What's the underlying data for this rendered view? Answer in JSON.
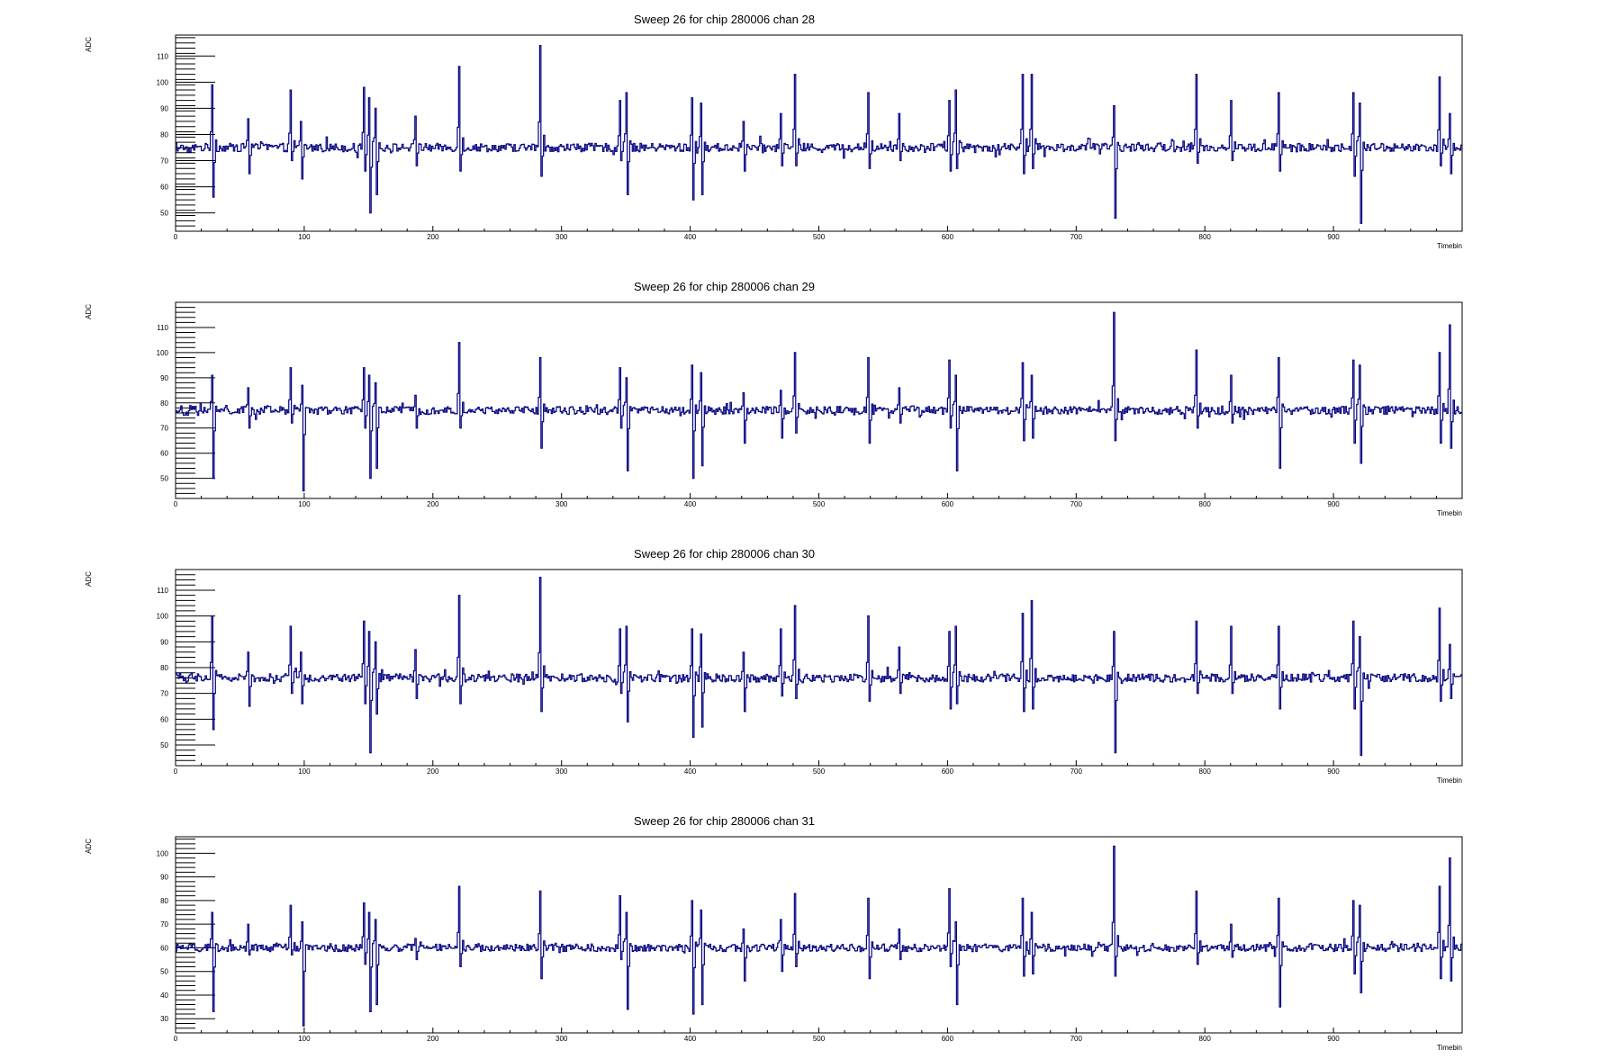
{
  "chart_data": [
    {
      "type": "line",
      "title": "Sweep 26 for chip 280006 chan 28",
      "xlabel": "Timebin",
      "ylabel": "ADC",
      "xlim": [
        0,
        1000
      ],
      "ylim": [
        43,
        118
      ],
      "xticks": [
        0,
        100,
        200,
        300,
        400,
        500,
        600,
        700,
        800,
        900
      ],
      "yticks": [
        50,
        60,
        70,
        80,
        90,
        100,
        110
      ],
      "baseline": 75,
      "series": [
        {
          "color": "#000080",
          "spikes": [
            {
              "x": 28,
              "high": 99,
              "low": 56
            },
            {
              "x": 56,
              "high": 86,
              "low": 65
            },
            {
              "x": 89,
              "high": 97,
              "low": 70
            },
            {
              "x": 97,
              "high": 85,
              "low": 63
            },
            {
              "x": 146,
              "high": 98,
              "low": 66
            },
            {
              "x": 150,
              "high": 94,
              "low": 50
            },
            {
              "x": 155,
              "high": 90,
              "low": 57
            },
            {
              "x": 186,
              "high": 87,
              "low": 68
            },
            {
              "x": 220,
              "high": 106,
              "low": 66
            },
            {
              "x": 283,
              "high": 114,
              "low": 64
            },
            {
              "x": 345,
              "high": 93,
              "low": 70
            },
            {
              "x": 350,
              "high": 96,
              "low": 57
            },
            {
              "x": 401,
              "high": 94,
              "low": 55
            },
            {
              "x": 408,
              "high": 92,
              "low": 57
            },
            {
              "x": 441,
              "high": 85,
              "low": 66
            },
            {
              "x": 470,
              "high": 88,
              "low": 68
            },
            {
              "x": 481,
              "high": 103,
              "low": 68
            },
            {
              "x": 538,
              "high": 96,
              "low": 67
            },
            {
              "x": 562,
              "high": 88,
              "low": 70
            },
            {
              "x": 601,
              "high": 93,
              "low": 66
            },
            {
              "x": 606,
              "high": 97,
              "low": 67
            },
            {
              "x": 658,
              "high": 103,
              "low": 65
            },
            {
              "x": 665,
              "high": 103,
              "low": 67
            },
            {
              "x": 729,
              "high": 91,
              "low": 48
            },
            {
              "x": 793,
              "high": 103,
              "low": 69
            },
            {
              "x": 820,
              "high": 93,
              "low": 70
            },
            {
              "x": 857,
              "high": 96,
              "low": 66
            },
            {
              "x": 915,
              "high": 96,
              "low": 64
            },
            {
              "x": 920,
              "high": 92,
              "low": 46
            },
            {
              "x": 982,
              "high": 102,
              "low": 68
            },
            {
              "x": 990,
              "high": 88,
              "low": 65
            }
          ]
        }
      ]
    },
    {
      "type": "line",
      "title": "Sweep 26 for chip 280006 chan 29",
      "xlabel": "Timebin",
      "ylabel": "ADC",
      "xlim": [
        0,
        1000
      ],
      "ylim": [
        42,
        120
      ],
      "xticks": [
        0,
        100,
        200,
        300,
        400,
        500,
        600,
        700,
        800,
        900
      ],
      "yticks": [
        50,
        60,
        70,
        80,
        90,
        100,
        110
      ],
      "baseline": 77,
      "series": [
        {
          "color": "#000080",
          "spikes": [
            {
              "x": 28,
              "high": 91,
              "low": 50
            },
            {
              "x": 56,
              "high": 86,
              "low": 70
            },
            {
              "x": 89,
              "high": 94,
              "low": 72
            },
            {
              "x": 98,
              "high": 87,
              "low": 45
            },
            {
              "x": 146,
              "high": 94,
              "low": 70
            },
            {
              "x": 150,
              "high": 91,
              "low": 50
            },
            {
              "x": 155,
              "high": 88,
              "low": 54
            },
            {
              "x": 186,
              "high": 83,
              "low": 70
            },
            {
              "x": 220,
              "high": 104,
              "low": 70
            },
            {
              "x": 283,
              "high": 98,
              "low": 62
            },
            {
              "x": 345,
              "high": 94,
              "low": 70
            },
            {
              "x": 350,
              "high": 90,
              "low": 53
            },
            {
              "x": 401,
              "high": 95,
              "low": 50
            },
            {
              "x": 408,
              "high": 92,
              "low": 55
            },
            {
              "x": 441,
              "high": 84,
              "low": 64
            },
            {
              "x": 470,
              "high": 85,
              "low": 66
            },
            {
              "x": 481,
              "high": 100,
              "low": 68
            },
            {
              "x": 538,
              "high": 98,
              "low": 64
            },
            {
              "x": 562,
              "high": 86,
              "low": 72
            },
            {
              "x": 601,
              "high": 97,
              "low": 70
            },
            {
              "x": 606,
              "high": 91,
              "low": 53
            },
            {
              "x": 658,
              "high": 96,
              "low": 65
            },
            {
              "x": 665,
              "high": 91,
              "low": 66
            },
            {
              "x": 729,
              "high": 116,
              "low": 65
            },
            {
              "x": 793,
              "high": 101,
              "low": 70
            },
            {
              "x": 820,
              "high": 91,
              "low": 72
            },
            {
              "x": 857,
              "high": 98,
              "low": 54
            },
            {
              "x": 915,
              "high": 97,
              "low": 64
            },
            {
              "x": 920,
              "high": 95,
              "low": 56
            },
            {
              "x": 982,
              "high": 100,
              "low": 64
            },
            {
              "x": 990,
              "high": 111,
              "low": 62
            }
          ]
        }
      ]
    },
    {
      "type": "line",
      "title": "Sweep 26 for chip 280006 chan 30",
      "xlabel": "Timebin",
      "ylabel": "ADC",
      "xlim": [
        0,
        1000
      ],
      "ylim": [
        42,
        118
      ],
      "xticks": [
        0,
        100,
        200,
        300,
        400,
        500,
        600,
        700,
        800,
        900
      ],
      "yticks": [
        50,
        60,
        70,
        80,
        90,
        100,
        110
      ],
      "baseline": 76,
      "series": [
        {
          "color": "#000080",
          "spikes": [
            {
              "x": 28,
              "high": 100,
              "low": 56
            },
            {
              "x": 56,
              "high": 86,
              "low": 65
            },
            {
              "x": 89,
              "high": 96,
              "low": 70
            },
            {
              "x": 97,
              "high": 86,
              "low": 66
            },
            {
              "x": 146,
              "high": 98,
              "low": 66
            },
            {
              "x": 150,
              "high": 94,
              "low": 47
            },
            {
              "x": 155,
              "high": 90,
              "low": 62
            },
            {
              "x": 186,
              "high": 87,
              "low": 68
            },
            {
              "x": 220,
              "high": 108,
              "low": 66
            },
            {
              "x": 283,
              "high": 115,
              "low": 63
            },
            {
              "x": 345,
              "high": 95,
              "low": 70
            },
            {
              "x": 350,
              "high": 96,
              "low": 59
            },
            {
              "x": 401,
              "high": 95,
              "low": 53
            },
            {
              "x": 408,
              "high": 93,
              "low": 57
            },
            {
              "x": 441,
              "high": 86,
              "low": 63
            },
            {
              "x": 470,
              "high": 95,
              "low": 69
            },
            {
              "x": 481,
              "high": 104,
              "low": 68
            },
            {
              "x": 538,
              "high": 100,
              "low": 67
            },
            {
              "x": 562,
              "high": 88,
              "low": 70
            },
            {
              "x": 601,
              "high": 94,
              "low": 64
            },
            {
              "x": 606,
              "high": 96,
              "low": 66
            },
            {
              "x": 658,
              "high": 101,
              "low": 63
            },
            {
              "x": 665,
              "high": 106,
              "low": 64
            },
            {
              "x": 729,
              "high": 94,
              "low": 47
            },
            {
              "x": 793,
              "high": 98,
              "low": 70
            },
            {
              "x": 820,
              "high": 96,
              "low": 70
            },
            {
              "x": 857,
              "high": 96,
              "low": 64
            },
            {
              "x": 915,
              "high": 98,
              "low": 64
            },
            {
              "x": 920,
              "high": 92,
              "low": 46
            },
            {
              "x": 982,
              "high": 103,
              "low": 67
            },
            {
              "x": 990,
              "high": 89,
              "low": 68
            }
          ]
        }
      ]
    },
    {
      "type": "line",
      "title": "Sweep 26 for chip 280006 chan 31",
      "xlabel": "Timebin",
      "ylabel": "ADC",
      "xlim": [
        0,
        1000
      ],
      "ylim": [
        24,
        107
      ],
      "xticks": [
        0,
        100,
        200,
        300,
        400,
        500,
        600,
        700,
        800,
        900
      ],
      "yticks": [
        30,
        40,
        50,
        60,
        70,
        80,
        90,
        100
      ],
      "baseline": 60,
      "series": [
        {
          "color": "#000080",
          "spikes": [
            {
              "x": 28,
              "high": 75,
              "low": 33
            },
            {
              "x": 56,
              "high": 70,
              "low": 57
            },
            {
              "x": 89,
              "high": 78,
              "low": 57
            },
            {
              "x": 98,
              "high": 71,
              "low": 27
            },
            {
              "x": 146,
              "high": 79,
              "low": 53
            },
            {
              "x": 150,
              "high": 75,
              "low": 33
            },
            {
              "x": 155,
              "high": 72,
              "low": 36
            },
            {
              "x": 186,
              "high": 64,
              "low": 55
            },
            {
              "x": 220,
              "high": 86,
              "low": 52
            },
            {
              "x": 283,
              "high": 84,
              "low": 47
            },
            {
              "x": 345,
              "high": 82,
              "low": 55
            },
            {
              "x": 350,
              "high": 75,
              "low": 34
            },
            {
              "x": 401,
              "high": 80,
              "low": 32
            },
            {
              "x": 408,
              "high": 76,
              "low": 36
            },
            {
              "x": 441,
              "high": 68,
              "low": 46
            },
            {
              "x": 470,
              "high": 72,
              "low": 50
            },
            {
              "x": 481,
              "high": 83,
              "low": 52
            },
            {
              "x": 538,
              "high": 81,
              "low": 47
            },
            {
              "x": 562,
              "high": 68,
              "low": 55
            },
            {
              "x": 601,
              "high": 85,
              "low": 52
            },
            {
              "x": 606,
              "high": 71,
              "low": 36
            },
            {
              "x": 658,
              "high": 81,
              "low": 48
            },
            {
              "x": 665,
              "high": 75,
              "low": 49
            },
            {
              "x": 729,
              "high": 103,
              "low": 48
            },
            {
              "x": 793,
              "high": 84,
              "low": 53
            },
            {
              "x": 820,
              "high": 70,
              "low": 56
            },
            {
              "x": 857,
              "high": 81,
              "low": 35
            },
            {
              "x": 915,
              "high": 80,
              "low": 49
            },
            {
              "x": 920,
              "high": 78,
              "low": 41
            },
            {
              "x": 982,
              "high": 86,
              "low": 47
            },
            {
              "x": 990,
              "high": 98,
              "low": 46
            }
          ]
        }
      ]
    }
  ]
}
